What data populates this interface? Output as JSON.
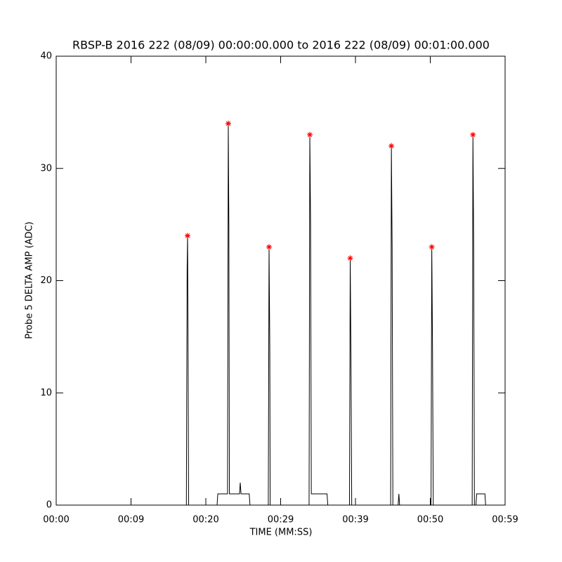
{
  "chart_data": {
    "type": "line",
    "title": "RBSP-B 2016 222 (08/09) 00:00:00.000 to 2016 222 (08/09) 00:01:00.000",
    "x_label": "TIME (MM:SS)",
    "y_label": "Probe 5 DELTA AMP (ADC)",
    "xlim": [
      0,
      60
    ],
    "xticks": [
      {
        "value": 0,
        "label": "00:00"
      },
      {
        "value": 10,
        "label": "00:09"
      },
      {
        "value": 20,
        "label": "00:20"
      },
      {
        "value": 30,
        "label": "00:29"
      },
      {
        "value": 40,
        "label": "00:39"
      },
      {
        "value": 50,
        "label": "00:50"
      },
      {
        "value": 60,
        "label": "00:59"
      }
    ],
    "ylim": [
      0,
      40
    ],
    "yticks": [
      0,
      10,
      20,
      30,
      40
    ],
    "series": [
      {
        "color": "#000000",
        "x": [
          0,
          17.4,
          17.5,
          17.56,
          17.62,
          17.7,
          21.5,
          21.6,
          22.9,
          23.0,
          23.08,
          23.15,
          24.5,
          24.6,
          24.7,
          25.8,
          25.9,
          28.35,
          28.45,
          28.55,
          28.6,
          33.8,
          33.9,
          34.0,
          34.1,
          36.2,
          36.3,
          39.2,
          39.3,
          39.4,
          39.5,
          44.7,
          44.8,
          44.9,
          45.0,
          45.7,
          45.8,
          45.9,
          50.1,
          50.2,
          50.3,
          50.4,
          55.6,
          55.7,
          55.8,
          55.9,
          56.1,
          56.2,
          57.3,
          57.4
        ],
        "values": [
          0,
          0,
          21,
          24,
          15,
          0,
          0,
          1,
          1,
          34,
          25,
          1,
          1,
          2,
          1,
          1,
          0,
          0,
          23,
          14,
          0,
          0,
          33,
          25,
          1,
          1,
          0,
          0,
          22,
          13,
          0,
          0,
          32,
          23,
          0,
          0,
          1,
          0,
          0,
          23,
          14,
          0,
          0,
          33,
          23,
          0,
          0,
          1,
          1,
          0
        ]
      },
      {
        "color": "#ff0000",
        "marker": "star",
        "x": [
          17.56,
          23.0,
          28.45,
          33.9,
          39.3,
          44.8,
          50.2,
          55.7
        ],
        "values": [
          24,
          34,
          23,
          33,
          22,
          32,
          23,
          33
        ]
      }
    ]
  }
}
